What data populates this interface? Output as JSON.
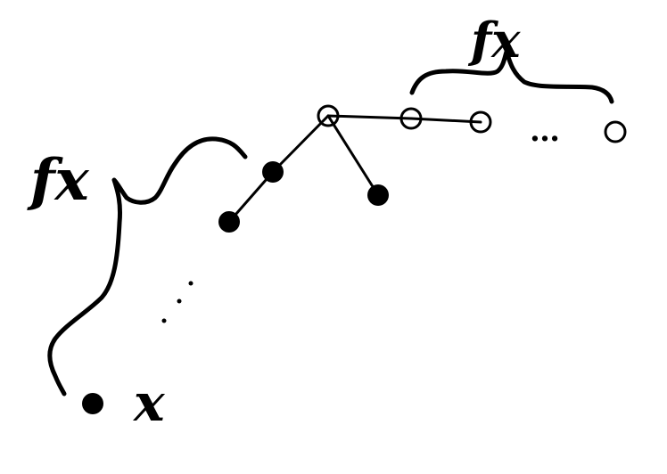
{
  "labels": {
    "fx_top": "fx",
    "fx_left": "fx",
    "x_bottom": "x",
    "ellipsis_right": "…",
    "ellipsis_left": "⋰"
  },
  "colors": {
    "ink": "#000000",
    "open_node_fill": "#ffffff",
    "filled_node_fill": "#000000"
  }
}
